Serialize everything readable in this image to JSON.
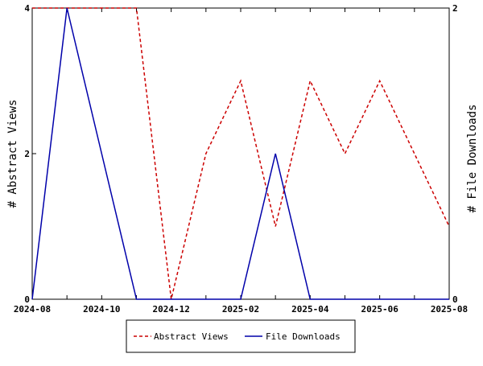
{
  "chart_data": {
    "type": "line",
    "x": [
      "2024-08",
      "2024-09",
      "2024-10",
      "2024-11",
      "2024-12",
      "2025-01",
      "2025-02",
      "2025-03",
      "2025-04",
      "2025-05",
      "2025-06",
      "2025-07",
      "2025-08"
    ],
    "x_tick_labels": [
      "2024-08",
      "2024-10",
      "2024-12",
      "2025-02",
      "2025-04",
      "2025-06",
      "2025-08"
    ],
    "y_left": {
      "label": "# Abstract Views",
      "ylim": [
        0,
        4
      ],
      "ticks": [
        "0",
        "2",
        "4"
      ]
    },
    "y_right": {
      "label": "# File Downloads",
      "ylim": [
        0,
        2
      ],
      "ticks": [
        "0",
        "2"
      ]
    },
    "series": [
      {
        "name": "Abstract Views",
        "axis": "left",
        "color": "#cc0000",
        "style": "dashed",
        "values": [
          4,
          4,
          4,
          4,
          0,
          2,
          3,
          1,
          3,
          2,
          3,
          2,
          1
        ]
      },
      {
        "name": "File Downloads",
        "axis": "right",
        "color": "#0000aa",
        "style": "solid",
        "values": [
          0,
          2,
          1,
          0,
          0,
          0,
          0,
          1,
          0,
          0,
          0,
          0,
          0
        ]
      }
    ],
    "legend_position": "bottom-center",
    "grid": false
  }
}
